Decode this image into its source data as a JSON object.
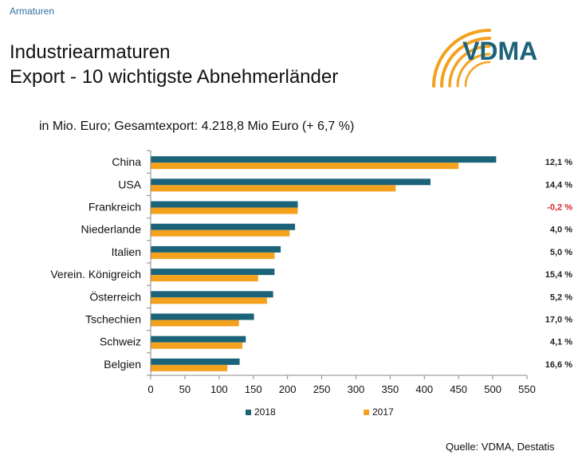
{
  "header": {
    "section": "Armaturen",
    "title_line1": "Industriearmaturen",
    "title_line2": "Export - 10 wichtigste Abnehmerländer",
    "logo_text": "VDMA"
  },
  "chart_data": {
    "type": "bar",
    "orientation": "horizontal",
    "subtitle": "in Mio. Euro; Gesamtexport: 4.218,8 Mio Euro (+ 6,7 %)",
    "categories": [
      "China",
      "USA",
      "Frankreich",
      "Niederlande",
      "Italien",
      "Verein. Königreich",
      "Österreich",
      "Tschechien",
      "Schweiz",
      "Belgien"
    ],
    "series": [
      {
        "name": "2018",
        "color": "#1b6379",
        "values": [
          505,
          409,
          215,
          211,
          190,
          181,
          179,
          151,
          139,
          130
        ]
      },
      {
        "name": "2017",
        "color": "#f4a11e",
        "values": [
          450,
          358,
          215,
          203,
          181,
          157,
          170,
          129,
          134,
          112
        ]
      }
    ],
    "change_labels": [
      "12,1  %",
      "14,4  %",
      "-0,2  %",
      "4,0  %",
      "5,0  %",
      "15,4  %",
      "5,2  %",
      "17,0  %",
      "4,1  %",
      "16,6  %"
    ],
    "negative_color": "#d7262c",
    "xlim": [
      0,
      550
    ],
    "xticks": [
      "0",
      "50",
      "100",
      "150",
      "200",
      "250",
      "300",
      "350",
      "400",
      "450",
      "500",
      "550"
    ],
    "legend_position": "bottom",
    "grid": false
  },
  "footer": {
    "source": "Quelle: VDMA, Destatis"
  }
}
